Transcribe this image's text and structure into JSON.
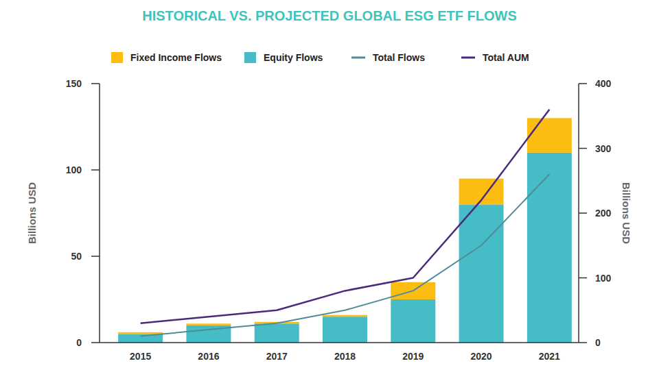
{
  "chart_data": {
    "type": "bar",
    "title": "HISTORICAL VS. PROJECTED GLOBAL ESG ETF FLOWS",
    "categories": [
      "2015",
      "2016",
      "2017",
      "2018",
      "2019",
      "2020",
      "2021"
    ],
    "stacked": true,
    "legend": "top",
    "grid": false,
    "ylabel": "Billions USD",
    "y2label": "Billions USD",
    "ylim": [
      0,
      150
    ],
    "yticks": [
      0,
      50,
      100,
      150
    ],
    "y2lim": [
      0,
      400
    ],
    "y2ticks": [
      0,
      100,
      200,
      300,
      400
    ],
    "series": [
      {
        "name": "Fixed Income Flows",
        "type": "bar",
        "color": "#fbbd12",
        "values": [
          1,
          1,
          1,
          1,
          10,
          15,
          20
        ]
      },
      {
        "name": "Equity Flows",
        "type": "bar",
        "color": "#46bcc6",
        "values": [
          5,
          10,
          11,
          15,
          25,
          80,
          110
        ]
      },
      {
        "name": "Total Flows",
        "type": "line",
        "axis": "y2",
        "color": "#4e8c98",
        "values": [
          10,
          20,
          30,
          50,
          80,
          150,
          260
        ]
      },
      {
        "name": "Total AUM",
        "type": "line",
        "axis": "y2",
        "color": "#4b2a7c",
        "values": [
          30,
          40,
          50,
          80,
          100,
          220,
          360
        ]
      }
    ]
  }
}
